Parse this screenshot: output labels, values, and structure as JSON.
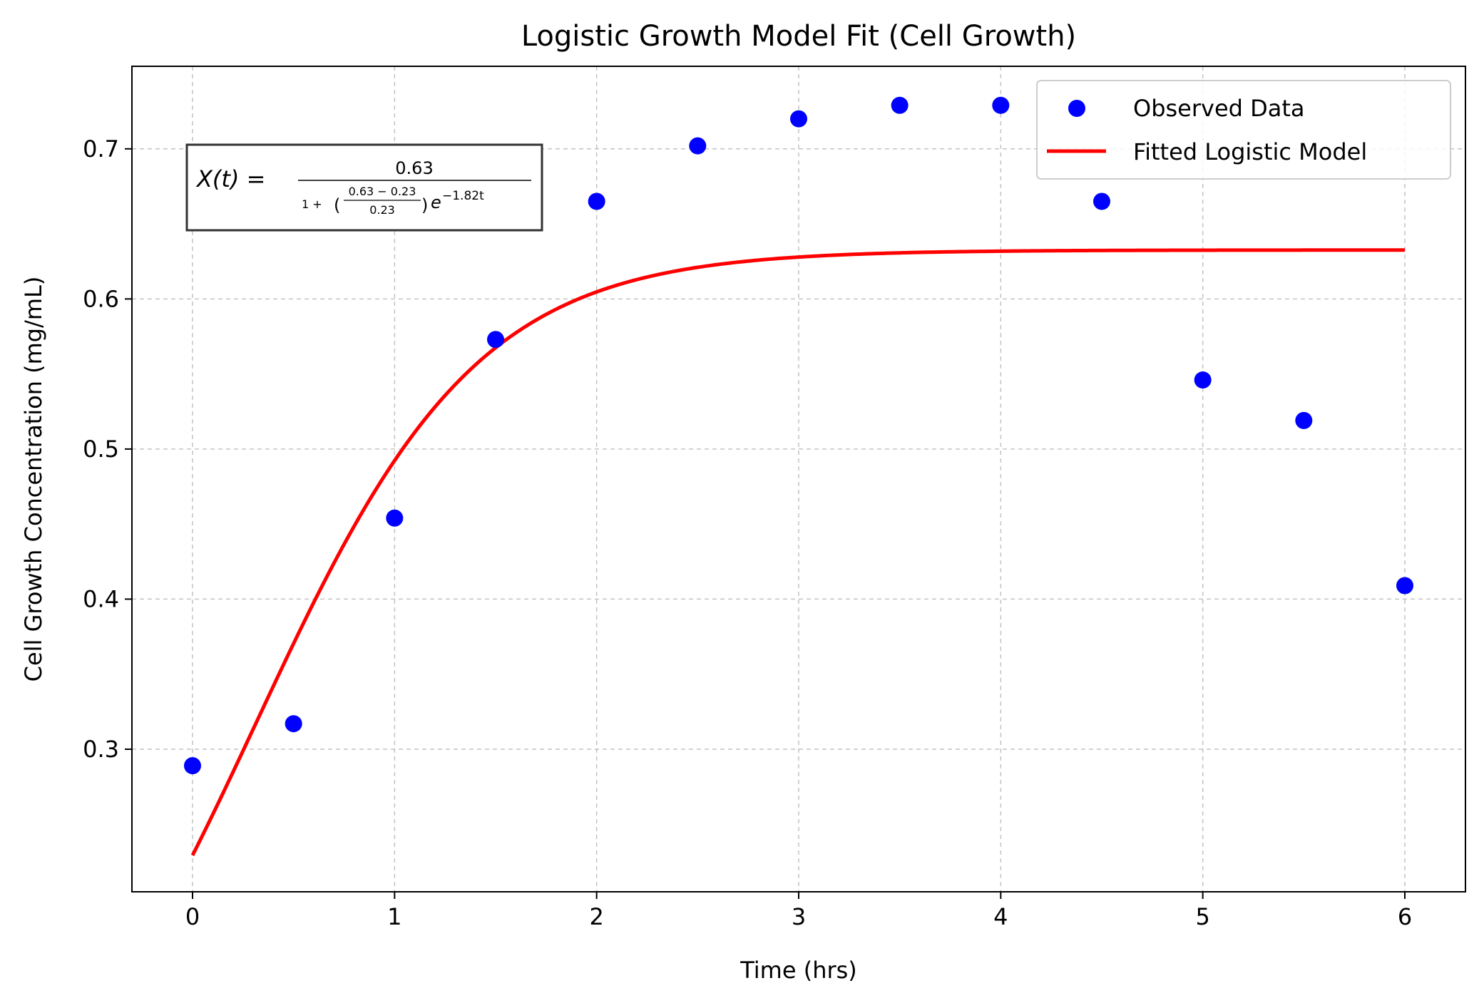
{
  "chart_data": {
    "type": "scatter",
    "title": "Logistic Growth Model Fit (Cell Growth)",
    "xlabel": "Time (hrs)",
    "ylabel": "Cell Growth Concentration (mg/mL)",
    "xlim": [
      -0.3,
      6.3
    ],
    "ylim": [
      0.205,
      0.755
    ],
    "xticks": [
      0,
      1,
      2,
      3,
      4,
      5,
      6
    ],
    "xtick_labels": [
      "0",
      "1",
      "2",
      "3",
      "4",
      "5",
      "6"
    ],
    "yticks": [
      0.3,
      0.4,
      0.5,
      0.6,
      0.7
    ],
    "ytick_labels": [
      "0.3",
      "0.4",
      "0.5",
      "0.6",
      "0.7"
    ],
    "grid": true,
    "legend_position": "top-right",
    "series": [
      {
        "name": "Observed Data",
        "kind": "scatter",
        "color": "#0000ff",
        "x": [
          0,
          0.5,
          1,
          1.5,
          2,
          2.5,
          3,
          3.5,
          4,
          4.5,
          5,
          5.5,
          6
        ],
        "y": [
          0.289,
          0.317,
          0.454,
          0.573,
          0.665,
          0.702,
          0.72,
          0.729,
          0.729,
          0.665,
          0.546,
          0.519,
          0.409
        ]
      },
      {
        "name": "Fitted Logistic Model",
        "kind": "line",
        "color": "#ff0000",
        "model": {
          "K": 0.6326,
          "X0": 0.2293,
          "r": 1.82
        },
        "x_range": [
          0,
          6
        ]
      }
    ],
    "annotation": {
      "lhs": "X(t) =",
      "numerator": "0.63",
      "denom_prefix": "1 +",
      "frac_num": "0.63 − 0.23",
      "frac_den": "0.23",
      "exp_base": "e",
      "exp_power": "−1.82t"
    }
  }
}
